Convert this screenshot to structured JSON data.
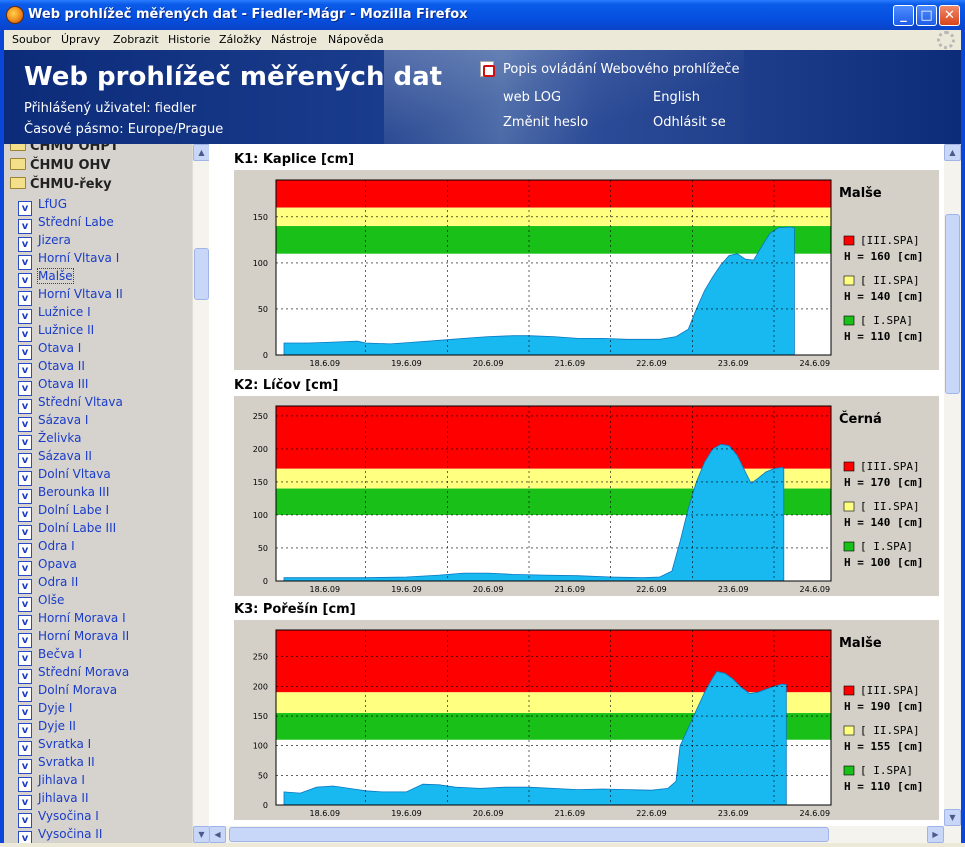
{
  "window": {
    "title": "Web prohlížeč měřených dat - Fiedler-Mágr - Mozilla Firefox",
    "min_icon": "minimize-icon",
    "max_icon": "maximize-icon",
    "close_icon": "close-icon"
  },
  "menu": [
    "Soubor",
    "Úpravy",
    "Zobrazit",
    "Historie",
    "Záložky",
    "Nástroje",
    "Nápověda"
  ],
  "header": {
    "title": "Web prohlížeč měřených dat",
    "user_line": "Přihlášený uživatel: fiedler",
    "tz_line": "Časové pásmo: Europe/Prague",
    "help_link": "Popis ovládání Webového prohlížeče",
    "weblog_link": "web LOG",
    "english_link": "English",
    "password_link": "Změnit heslo",
    "logout_link": "Odhlásit se"
  },
  "sidebar": {
    "folders": [
      "ČHMU OHPT",
      "ČHMU OHV",
      "ČHMU-řeky"
    ],
    "items": [
      "LfUG",
      "Střední Labe",
      "Jizera",
      "Horní Vltava I",
      "Malše",
      "Horní Vltava II",
      "Lužnice I",
      "Lužnice II",
      "Otava I",
      "Otava II",
      "Otava III",
      "Střední Vltava",
      "Sázava I",
      "Želivka",
      "Sázava II",
      "Dolní Vltava",
      "Berounka III",
      "Dolní Labe I",
      "Dolní Labe III",
      "Odra I",
      "Opava",
      "Odra II",
      "Olše",
      "Horní Morava I",
      "Horní Morava II",
      "Bečva I",
      "Střední Morava",
      "Dolní Morava",
      "Dyje I",
      "Dyje II",
      "Svratka I",
      "Svratka II",
      "Jihlava I",
      "Jihlava II",
      "Vysočina I",
      "Vysočina II"
    ],
    "selected": "Malše"
  },
  "colors": {
    "spa3": "#ff0000",
    "spa2": "#ffff80",
    "spa1": "#18c018",
    "water": "#18b8f0",
    "panel": "#d4d0c8"
  },
  "chart_data": [
    {
      "type": "area",
      "title": "K1: Kaplice [cm]",
      "river": "Malše",
      "x": [
        "18.6.09",
        "19.6.09",
        "20.6.09",
        "21.6.09",
        "22.6.09",
        "23.6.09",
        "24.6.09"
      ],
      "xlabels": [
        "18.6.09",
        "19.6.09",
        "20.6.09",
        "21.6.09",
        "22.6.09",
        "23.6.09",
        "24.6.09"
      ],
      "ylim": [
        0,
        190
      ],
      "yticks": [
        0,
        50,
        100,
        150
      ],
      "spa": [
        {
          "label": "[III.SPA]",
          "value": "H = 160 [cm]",
          "level": 160
        },
        {
          "label": "[ II.SPA]",
          "value": "H = 140 [cm]",
          "level": 140
        },
        {
          "label": "[  I.SPA]",
          "value": "H = 110 [cm]",
          "level": 110
        }
      ],
      "series": [
        [
          0,
          13
        ],
        [
          0.3,
          13
        ],
        [
          0.6,
          14
        ],
        [
          0.9,
          15
        ],
        [
          1.0,
          13
        ],
        [
          1.3,
          12
        ],
        [
          1.6,
          14
        ],
        [
          1.9,
          16
        ],
        [
          2.2,
          18
        ],
        [
          2.5,
          20
        ],
        [
          2.8,
          21
        ],
        [
          3.0,
          21
        ],
        [
          3.3,
          20
        ],
        [
          3.6,
          18
        ],
        [
          3.9,
          18
        ],
        [
          4.2,
          17
        ],
        [
          4.4,
          17
        ],
        [
          4.6,
          17
        ],
        [
          4.8,
          20
        ],
        [
          4.95,
          28
        ],
        [
          5.05,
          50
        ],
        [
          5.15,
          70
        ],
        [
          5.25,
          85
        ],
        [
          5.35,
          98
        ],
        [
          5.45,
          108
        ],
        [
          5.55,
          110
        ],
        [
          5.65,
          104
        ],
        [
          5.75,
          103
        ],
        [
          5.85,
          118
        ],
        [
          5.95,
          132
        ],
        [
          6.05,
          138
        ],
        [
          6.2,
          139
        ],
        [
          6.25,
          138
        ]
      ]
    },
    {
      "type": "area",
      "title": "K2: Líčov [cm]",
      "river": "Černá",
      "x": [
        "18.6.09",
        "19.6.09",
        "20.6.09",
        "21.6.09",
        "22.6.09",
        "23.6.09",
        "24.6.09"
      ],
      "xlabels": [
        "18.6.09",
        "19.6.09",
        "20.6.09",
        "21.6.09",
        "22.6.09",
        "23.6.09",
        "24.6.09"
      ],
      "ylim": [
        0,
        265
      ],
      "yticks": [
        0,
        50,
        100,
        150,
        200,
        250
      ],
      "spa": [
        {
          "label": "[III.SPA]",
          "value": "H = 170 [cm]",
          "level": 170
        },
        {
          "label": "[ II.SPA]",
          "value": "H = 140 [cm]",
          "level": 140
        },
        {
          "label": "[  I.SPA]",
          "value": "H = 100 [cm]",
          "level": 100
        }
      ],
      "series": [
        [
          0,
          5
        ],
        [
          0.5,
          5
        ],
        [
          1.0,
          5
        ],
        [
          1.5,
          6
        ],
        [
          1.9,
          9
        ],
        [
          2.2,
          12
        ],
        [
          2.5,
          12
        ],
        [
          2.8,
          10
        ],
        [
          3.2,
          9
        ],
        [
          3.6,
          8
        ],
        [
          4.0,
          6
        ],
        [
          4.4,
          5
        ],
        [
          4.6,
          6
        ],
        [
          4.75,
          15
        ],
        [
          4.85,
          60
        ],
        [
          4.95,
          110
        ],
        [
          5.05,
          150
        ],
        [
          5.15,
          180
        ],
        [
          5.25,
          200
        ],
        [
          5.35,
          207
        ],
        [
          5.45,
          205
        ],
        [
          5.55,
          190
        ],
        [
          5.65,
          165
        ],
        [
          5.72,
          148
        ],
        [
          5.8,
          155
        ],
        [
          5.9,
          165
        ],
        [
          6.0,
          170
        ],
        [
          6.1,
          172
        ],
        [
          6.12,
          170
        ]
      ]
    },
    {
      "type": "area",
      "title": "K3: Pořešín [cm]",
      "river": "Malše",
      "x": [
        "18.6.09",
        "19.6.09",
        "20.6.09",
        "21.6.09",
        "22.6.09",
        "23.6.09",
        "24.6.09"
      ],
      "xlabels": [
        "18.6.09",
        "19.6.09",
        "20.6.09",
        "21.6.09",
        "22.6.09",
        "23.6.09",
        "24.6.09"
      ],
      "ylim": [
        0,
        295
      ],
      "yticks": [
        0,
        50,
        100,
        150,
        200,
        250
      ],
      "spa": [
        {
          "label": "[III.SPA]",
          "value": "H = 190 [cm]",
          "level": 190
        },
        {
          "label": "[ II.SPA]",
          "value": "H = 155 [cm]",
          "level": 155
        },
        {
          "label": "[  I.SPA]",
          "value": "H = 110 [cm]",
          "level": 110
        }
      ],
      "series": [
        [
          0,
          22
        ],
        [
          0.2,
          20
        ],
        [
          0.4,
          30
        ],
        [
          0.6,
          32
        ],
        [
          0.8,
          28
        ],
        [
          1.0,
          24
        ],
        [
          1.2,
          22
        ],
        [
          1.5,
          22
        ],
        [
          1.7,
          35
        ],
        [
          1.9,
          34
        ],
        [
          2.1,
          30
        ],
        [
          2.4,
          28
        ],
        [
          2.7,
          30
        ],
        [
          3.0,
          30
        ],
        [
          3.3,
          28
        ],
        [
          3.6,
          26
        ],
        [
          3.9,
          27
        ],
        [
          4.2,
          26
        ],
        [
          4.5,
          25
        ],
        [
          4.7,
          28
        ],
        [
          4.8,
          40
        ],
        [
          4.85,
          100
        ],
        [
          4.95,
          130
        ],
        [
          5.05,
          160
        ],
        [
          5.15,
          190
        ],
        [
          5.25,
          215
        ],
        [
          5.3,
          225
        ],
        [
          5.4,
          222
        ],
        [
          5.5,
          212
        ],
        [
          5.6,
          198
        ],
        [
          5.7,
          188
        ],
        [
          5.8,
          190
        ],
        [
          5.9,
          195
        ],
        [
          6.0,
          200
        ],
        [
          6.1,
          204
        ],
        [
          6.15,
          203
        ]
      ]
    }
  ]
}
